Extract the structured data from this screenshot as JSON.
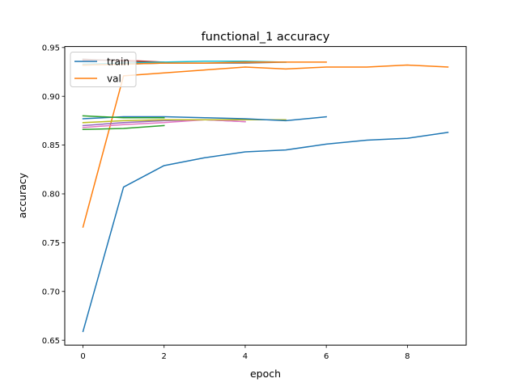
{
  "chart_data": {
    "type": "line",
    "title": "functional_1 accuracy",
    "xlabel": "epoch",
    "ylabel": "accuracy",
    "xlim": [
      -0.45,
      9.45
    ],
    "ylim": [
      0.645,
      0.951
    ],
    "xticks": [
      0,
      2,
      4,
      6,
      8
    ],
    "xtick_labels": [
      "0",
      "2",
      "4",
      "6",
      "8"
    ],
    "yticks": [
      0.65,
      0.7,
      0.75,
      0.8,
      0.85,
      0.9,
      0.95
    ],
    "ytick_labels": [
      "0.65",
      "0.70",
      "0.75",
      "0.80",
      "0.85",
      "0.90",
      "0.95"
    ],
    "grid": false,
    "legend": {
      "placement": "top-left",
      "entries": [
        {
          "label": "train",
          "color": "#1f77b4"
        },
        {
          "label": "val",
          "color": "#ff7f0e"
        }
      ]
    },
    "series": [
      {
        "name": "train",
        "color": "#1f77b4",
        "x": [
          0,
          1,
          2,
          3,
          4,
          5,
          6,
          7,
          8,
          9
        ],
        "y": [
          0.659,
          0.807,
          0.829,
          0.837,
          0.843,
          0.845,
          0.851,
          0.855,
          0.857,
          0.863
        ]
      },
      {
        "name": "val",
        "color": "#ff7f0e",
        "x": [
          0,
          1,
          2,
          3,
          4,
          5,
          6,
          7,
          8,
          9
        ],
        "y": [
          0.766,
          0.921,
          0.924,
          0.927,
          0.93,
          0.928,
          0.93,
          0.93,
          0.932,
          0.93
        ]
      },
      {
        "color": "#2ca02c",
        "x": [
          0,
          1,
          2
        ],
        "y": [
          0.866,
          0.867,
          0.87
        ]
      },
      {
        "color": "#d62728",
        "x": [
          0,
          1,
          2
        ],
        "y": [
          0.937,
          0.937,
          0.935
        ]
      },
      {
        "color": "#9467bd",
        "x": [
          0,
          1,
          2,
          3,
          4
        ],
        "y": [
          0.87,
          0.873,
          0.875,
          0.876,
          0.874
        ]
      },
      {
        "color": "#8c564b",
        "x": [
          0,
          1,
          2
        ],
        "y": [
          0.938,
          0.936,
          0.935
        ]
      },
      {
        "color": "#e377c2",
        "x": [
          0,
          1,
          2,
          3,
          4
        ],
        "y": [
          0.868,
          0.871,
          0.873,
          0.876,
          0.874
        ]
      },
      {
        "color": "#7f7f7f",
        "x": [
          0,
          1,
          2,
          3,
          4,
          5
        ],
        "y": [
          0.932,
          0.933,
          0.934,
          0.934,
          0.934,
          0.935
        ]
      },
      {
        "color": "#bcbd22",
        "x": [
          0,
          1,
          2,
          3,
          4,
          5
        ],
        "y": [
          0.873,
          0.875,
          0.876,
          0.876,
          0.876,
          0.876
        ]
      },
      {
        "color": "#17becf",
        "x": [
          0,
          1,
          2,
          3,
          4,
          5
        ],
        "y": [
          0.933,
          0.934,
          0.935,
          0.936,
          0.936,
          0.935
        ]
      },
      {
        "color": "#1f77b4",
        "x": [
          0,
          1,
          2,
          3,
          4,
          5,
          6
        ],
        "y": [
          0.877,
          0.879,
          0.879,
          0.878,
          0.877,
          0.875,
          0.879
        ]
      },
      {
        "color": "#ff7f0e",
        "x": [
          0,
          1,
          2,
          3,
          4,
          5,
          6
        ],
        "y": [
          0.932,
          0.933,
          0.934,
          0.934,
          0.935,
          0.935,
          0.935
        ]
      },
      {
        "color": "#2ca02c",
        "x": [
          0,
          1,
          2
        ],
        "y": [
          0.88,
          0.878,
          0.878
        ]
      }
    ]
  }
}
